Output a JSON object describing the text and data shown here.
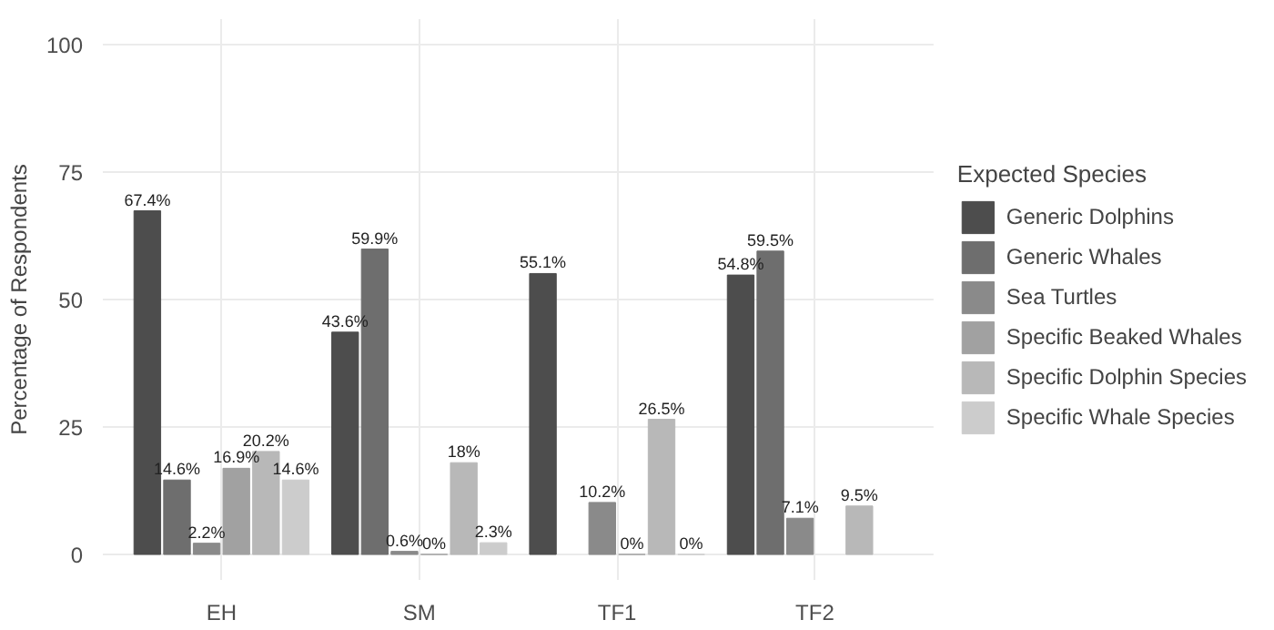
{
  "chart_data": {
    "type": "bar",
    "categories": [
      "EH",
      "SM",
      "TF1",
      "TF2"
    ],
    "ylabel": "Percentage of Respondents",
    "legend_title": "Expected Species",
    "ylim": [
      -5,
      105
    ],
    "yticks": [
      0,
      25,
      50,
      75,
      100
    ],
    "grid": true,
    "legend": "right",
    "series": [
      {
        "name": "Generic Dolphins",
        "color": "#4d4d4d",
        "values": [
          67.4,
          43.6,
          55.1,
          54.8
        ],
        "value_labels": [
          "67.4%",
          "43.6%",
          "55.1%",
          "54.8%"
        ]
      },
      {
        "name": "Generic Whales",
        "color": "#6e6e6e",
        "values": [
          14.6,
          59.9,
          null,
          59.5
        ],
        "value_labels": [
          "14.6%",
          "59.9%",
          null,
          "59.5%"
        ]
      },
      {
        "name": "Sea Turtles",
        "color": "#8a8a8a",
        "values": [
          2.2,
          0.6,
          10.2,
          7.1
        ],
        "value_labels": [
          "2.2%",
          "0.6%",
          "10.2%",
          "7.1%"
        ]
      },
      {
        "name": "Specific Beaked Whales",
        "color": "#a1a1a1",
        "values": [
          16.9,
          0,
          0,
          null
        ],
        "value_labels": [
          "16.9%",
          "0%",
          "0%",
          null
        ]
      },
      {
        "name": "Specific Dolphin Species",
        "color": "#b8b8b8",
        "values": [
          20.2,
          18,
          26.5,
          9.5
        ],
        "value_labels": [
          "20.2%",
          "18%",
          "26.5%",
          "9.5%"
        ]
      },
      {
        "name": "Specific Whale Species",
        "color": "#cccccc",
        "values": [
          14.6,
          2.3,
          0,
          null
        ],
        "value_labels": [
          "14.6%",
          "2.3%",
          "0%",
          null
        ]
      }
    ]
  }
}
